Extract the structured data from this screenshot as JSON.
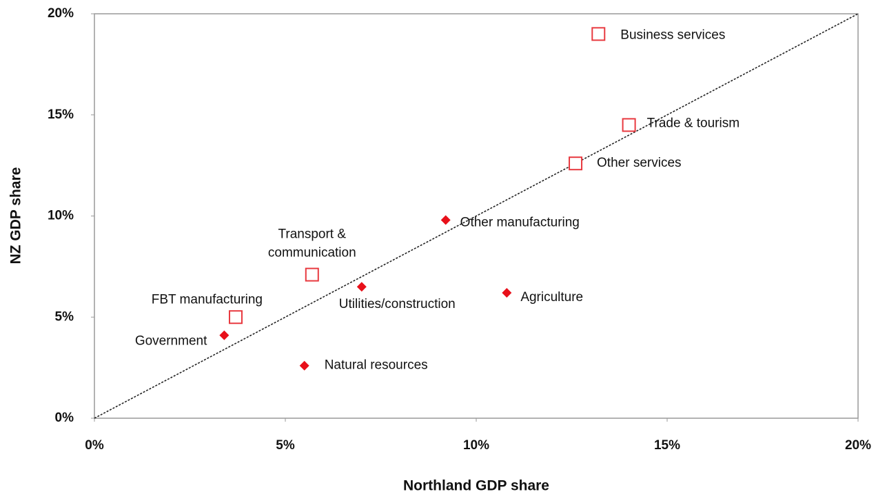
{
  "chart_data": {
    "type": "scatter",
    "x_label": "Northland GDP share",
    "y_label": "NZ GDP share",
    "xlim": [
      0,
      20
    ],
    "ylim": [
      0,
      20
    ],
    "xticks": [
      {
        "value": 0,
        "label": "0%"
      },
      {
        "value": 5,
        "label": "5%"
      },
      {
        "value": 10,
        "label": "10%"
      },
      {
        "value": 15,
        "label": "15%"
      },
      {
        "value": 20,
        "label": "20%"
      }
    ],
    "yticks": [
      {
        "value": 0,
        "label": "0%"
      },
      {
        "value": 5,
        "label": "5%"
      },
      {
        "value": 10,
        "label": "10%"
      },
      {
        "value": 15,
        "label": "15%"
      },
      {
        "value": 20,
        "label": "20%"
      }
    ],
    "reference_line": "diagonal",
    "series": [
      {
        "marker": "square",
        "color": "#e8393f",
        "x": [
          13.2,
          14.0,
          12.6,
          5.7,
          3.7
        ],
        "values": [
          19.0,
          14.5,
          12.6,
          7.1,
          5.0
        ],
        "labels": [
          "Business services",
          "Trade & tourism",
          "Other services",
          [
            "Transport &",
            "communication"
          ],
          "FBT manufacturing"
        ]
      },
      {
        "marker": "diamond",
        "color": "#e8101a",
        "x": [
          9.2,
          7.0,
          10.8,
          3.4,
          5.5
        ],
        "values": [
          9.8,
          6.5,
          6.2,
          4.1,
          2.6
        ],
        "labels": [
          "Other manufacturing",
          "Utilities/construction",
          "Agriculture",
          "Government",
          "Natural resources"
        ]
      }
    ]
  }
}
